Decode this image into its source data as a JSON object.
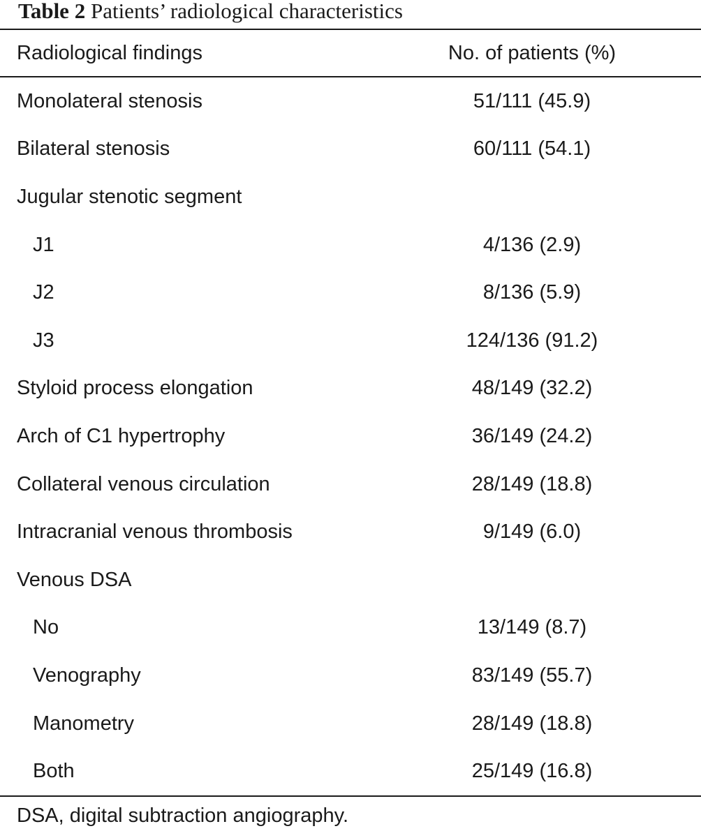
{
  "caption": {
    "label": "Table 2",
    "title": "Patients’ radiological characteristics"
  },
  "table": {
    "columns": [
      "Radiological findings",
      "No. of patients (%)"
    ],
    "rows": [
      {
        "finding": "Monolateral stenosis",
        "value": "51/111 (45.9)",
        "indent": false
      },
      {
        "finding": "Bilateral stenosis",
        "value": "60/111 (54.1)",
        "indent": false
      },
      {
        "finding": "Jugular stenotic segment",
        "value": "",
        "indent": false
      },
      {
        "finding": "J1",
        "value": "4/136 (2.9)",
        "indent": true
      },
      {
        "finding": "J2",
        "value": "8/136 (5.9)",
        "indent": true
      },
      {
        "finding": "J3",
        "value": "124/136 (91.2)",
        "indent": true
      },
      {
        "finding": "Styloid process elongation",
        "value": "48/149 (32.2)",
        "indent": false
      },
      {
        "finding": "Arch of C1 hypertrophy",
        "value": "36/149 (24.2)",
        "indent": false
      },
      {
        "finding": "Collateral venous circulation",
        "value": "28/149 (18.8)",
        "indent": false
      },
      {
        "finding": "Intracranial venous thrombosis",
        "value": "9/149 (6.0)",
        "indent": false
      },
      {
        "finding": "Venous DSA",
        "value": "",
        "indent": false
      },
      {
        "finding": "No",
        "value": "13/149 (8.7)",
        "indent": true
      },
      {
        "finding": "Venography",
        "value": "83/149 (55.7)",
        "indent": true
      },
      {
        "finding": "Manometry",
        "value": "28/149 (18.8)",
        "indent": true
      },
      {
        "finding": "Both",
        "value": "25/149 (16.8)",
        "indent": true
      }
    ]
  },
  "footnote": "DSA, digital subtraction angiography."
}
